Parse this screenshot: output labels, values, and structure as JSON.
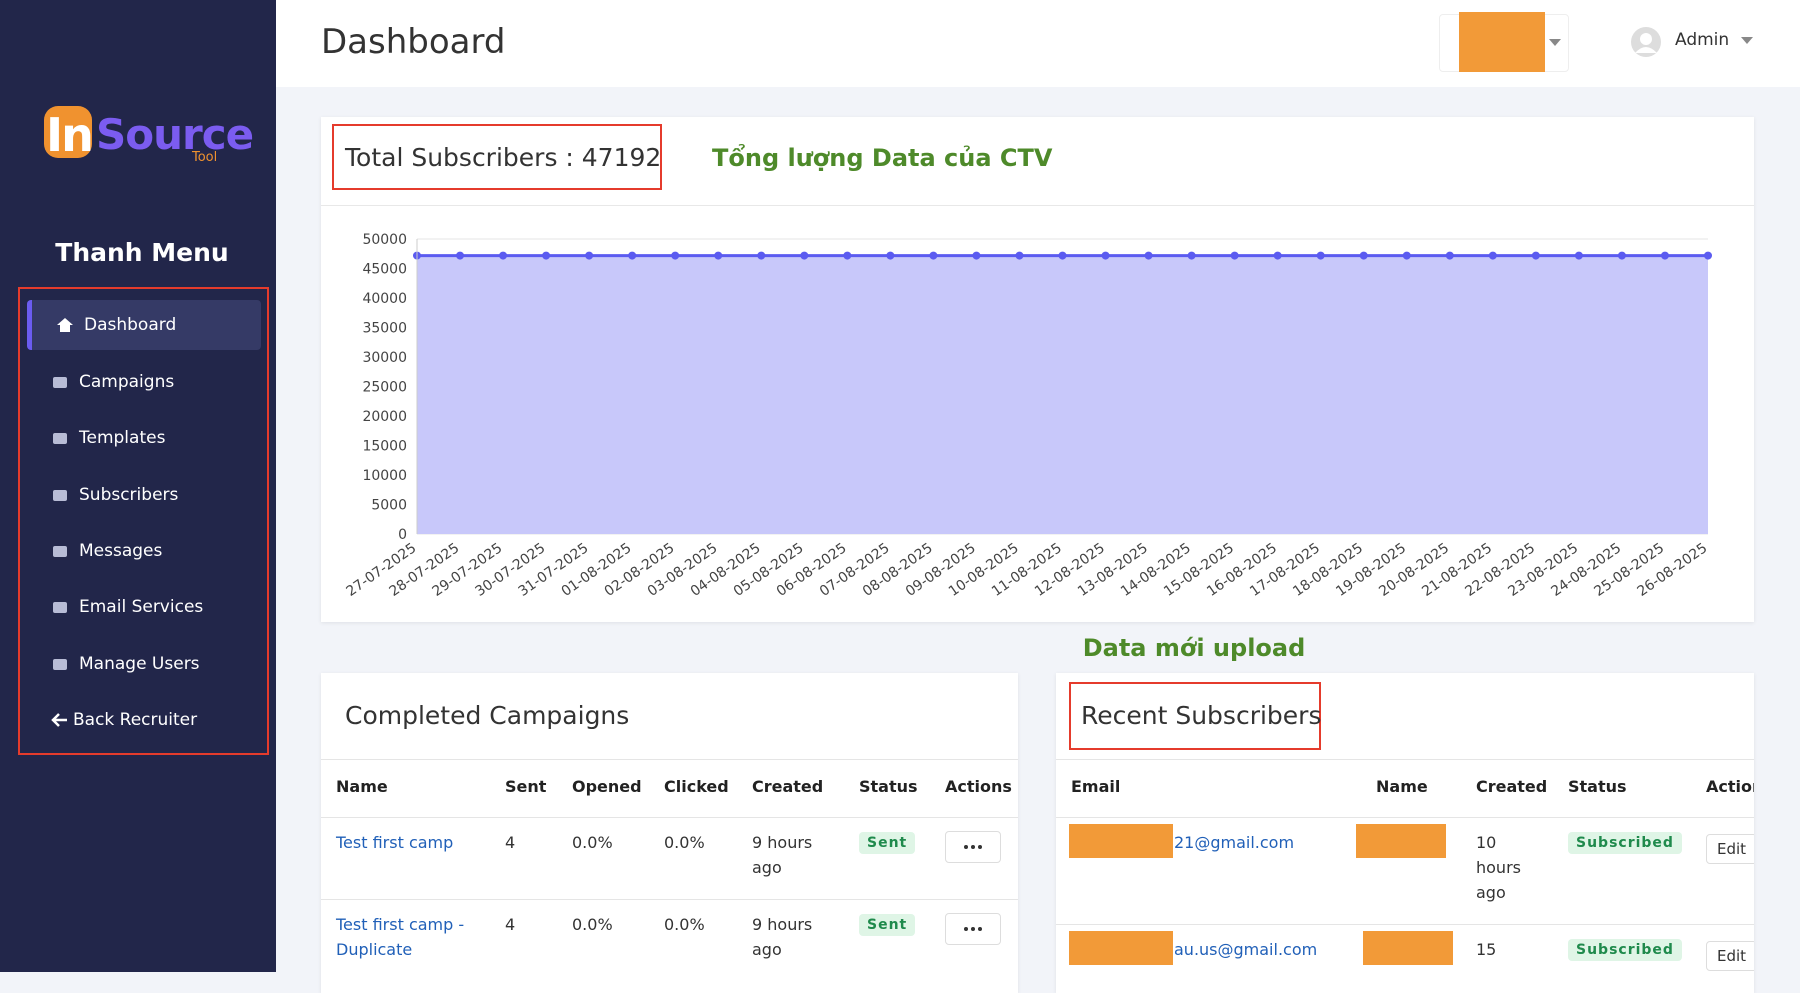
{
  "brand": {
    "logo_main": "In",
    "logo_second": "Source",
    "logo_sub": "Tool"
  },
  "sidebar": {
    "title": "Thanh Menu",
    "items": [
      "Dashboard",
      "Campaigns",
      "Templates",
      "Subscribers",
      "Messages",
      "Email Services",
      "Manage Users",
      "Back Recruiter"
    ]
  },
  "header": {
    "title": "Dashboard",
    "user": "Admin"
  },
  "chart_data": {
    "type": "area",
    "title": "Total Subscribers : 47192",
    "annotation": "Tổng lượng Data của CTV",
    "categories": [
      "27-07-2025",
      "28-07-2025",
      "29-07-2025",
      "30-07-2025",
      "31-07-2025",
      "01-08-2025",
      "02-08-2025",
      "03-08-2025",
      "04-08-2025",
      "05-08-2025",
      "06-08-2025",
      "07-08-2025",
      "08-08-2025",
      "09-08-2025",
      "10-08-2025",
      "11-08-2025",
      "12-08-2025",
      "13-08-2025",
      "14-08-2025",
      "15-08-2025",
      "16-08-2025",
      "17-08-2025",
      "18-08-2025",
      "19-08-2025",
      "20-08-2025",
      "21-08-2025",
      "22-08-2025",
      "23-08-2025",
      "24-08-2025",
      "25-08-2025",
      "26-08-2025"
    ],
    "values": [
      47192,
      47192,
      47192,
      47192,
      47192,
      47192,
      47192,
      47192,
      47192,
      47192,
      47192,
      47192,
      47192,
      47192,
      47192,
      47192,
      47192,
      47192,
      47192,
      47192,
      47192,
      47192,
      47192,
      47192,
      47192,
      47192,
      47192,
      47192,
      47192,
      47192,
      47192
    ],
    "color": "#5b5bf0",
    "fill": "#c8c8fa",
    "ylim": [
      0,
      50000
    ],
    "yticks": [
      0,
      5000,
      10000,
      15000,
      20000,
      25000,
      30000,
      35000,
      40000,
      45000,
      50000
    ],
    "grid": true
  },
  "note": "Data mới upload",
  "campaigns": {
    "title": "Completed Campaigns",
    "columns": [
      "Name",
      "Sent",
      "Opened",
      "Clicked",
      "Created",
      "Status",
      "Actions"
    ],
    "rows": [
      [
        "Test first camp",
        "4",
        "0.0%",
        "0.0%",
        "9 hours ago",
        "Sent"
      ],
      [
        "Test first camp - Duplicate",
        "4",
        "0.0%",
        "0.0%",
        "9 hours ago",
        "Sent"
      ]
    ]
  },
  "subscribers": {
    "title": "Recent Subscribers",
    "columns": [
      "Email",
      "Name",
      "Created",
      "Status",
      "Action"
    ],
    "rows": [
      [
        "21@gmail.com",
        "10 hours ago",
        "Subscribed",
        "Edit"
      ],
      [
        "au.us@gmail.com",
        "15",
        "Subscribed",
        "Edit"
      ]
    ]
  }
}
